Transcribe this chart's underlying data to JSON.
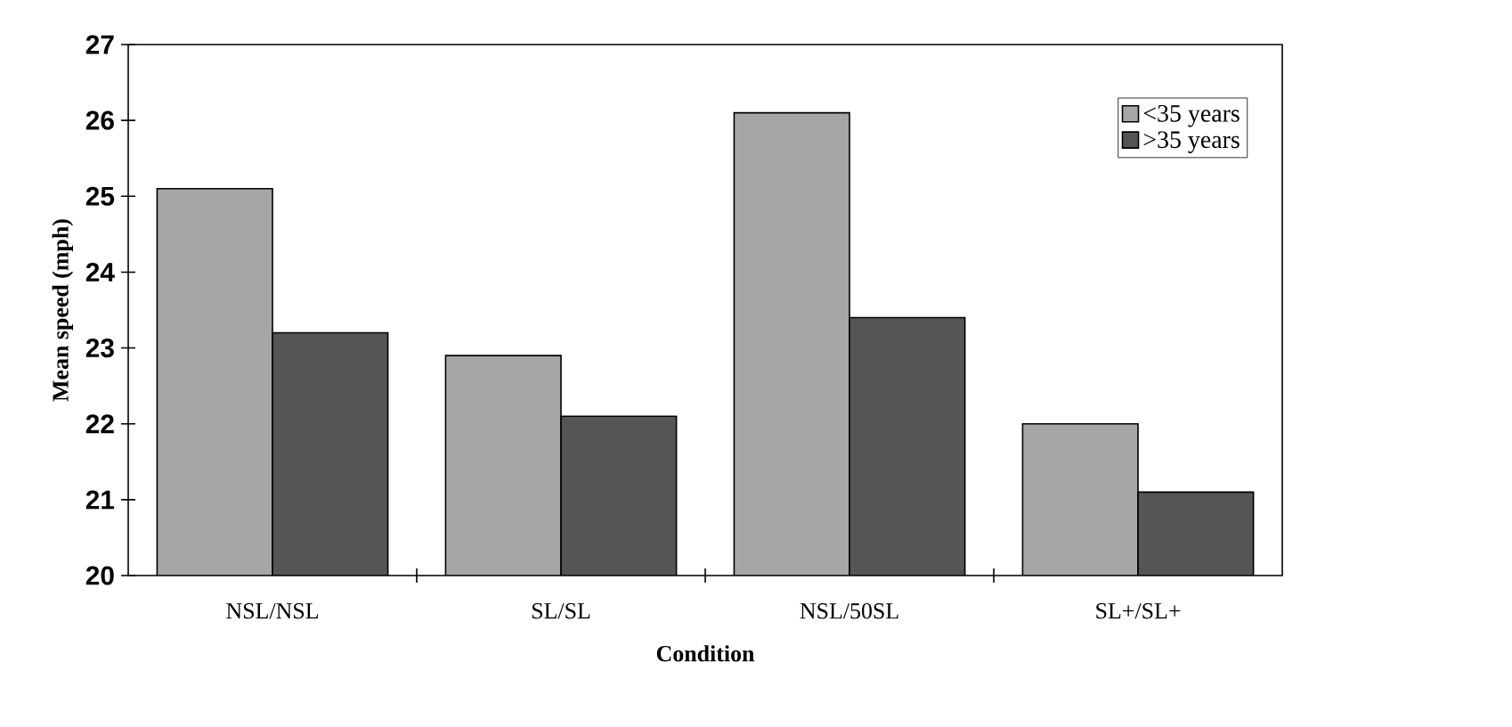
{
  "chart_data": {
    "type": "bar",
    "xlabel": "Condition",
    "ylabel": "Mean speed (mph)",
    "categories": [
      "NSL/NSL",
      "SL/SL",
      "NSL/50SL",
      "SL+/SL+"
    ],
    "series": [
      {
        "name": "<35 years",
        "color": "#a6a6a6",
        "values": [
          25.1,
          22.9,
          26.1,
          22.0
        ]
      },
      {
        "name": ">35 years",
        "color": "#555555",
        "values": [
          23.2,
          22.1,
          23.4,
          21.1
        ]
      }
    ],
    "ylim": [
      20,
      27
    ],
    "yticks": [
      20,
      21,
      22,
      23,
      24,
      25,
      26,
      27
    ],
    "legend": "top right"
  }
}
